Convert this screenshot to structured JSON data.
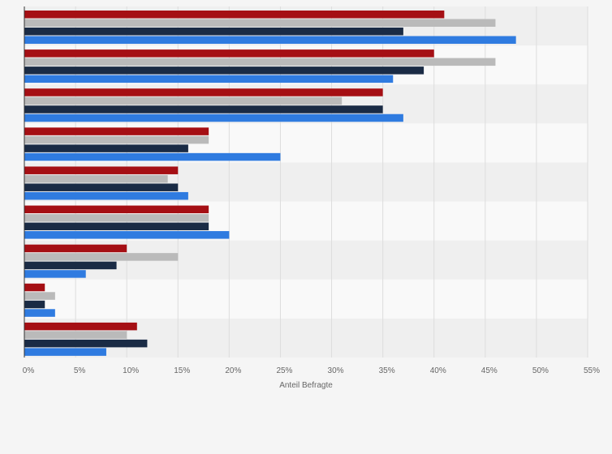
{
  "chart_data": {
    "type": "bar",
    "orientation": "horizontal",
    "xlabel": "Anteil Befragte",
    "xlim": [
      0,
      55
    ],
    "xticks": [
      0,
      5,
      10,
      15,
      20,
      25,
      30,
      35,
      40,
      45,
      50,
      55
    ],
    "xtick_labels": [
      "0%",
      "5%",
      "10%",
      "15%",
      "20%",
      "25%",
      "30%",
      "35%",
      "40%",
      "45%",
      "50%",
      "55%"
    ],
    "category_count": 9,
    "grid": true,
    "series": [
      {
        "color": "#a50f14",
        "values": [
          41,
          40,
          35,
          18,
          15,
          18,
          10,
          2,
          11
        ]
      },
      {
        "color": "#bababa",
        "values": [
          46,
          46,
          31,
          18,
          14,
          18,
          15,
          3,
          10
        ]
      },
      {
        "color": "#1a2b45",
        "values": [
          37,
          39,
          35,
          16,
          15,
          18,
          9,
          2,
          12
        ]
      },
      {
        "color": "#2f7be0",
        "values": [
          48,
          36,
          37,
          25,
          16,
          20,
          6,
          3,
          8
        ]
      }
    ]
  }
}
